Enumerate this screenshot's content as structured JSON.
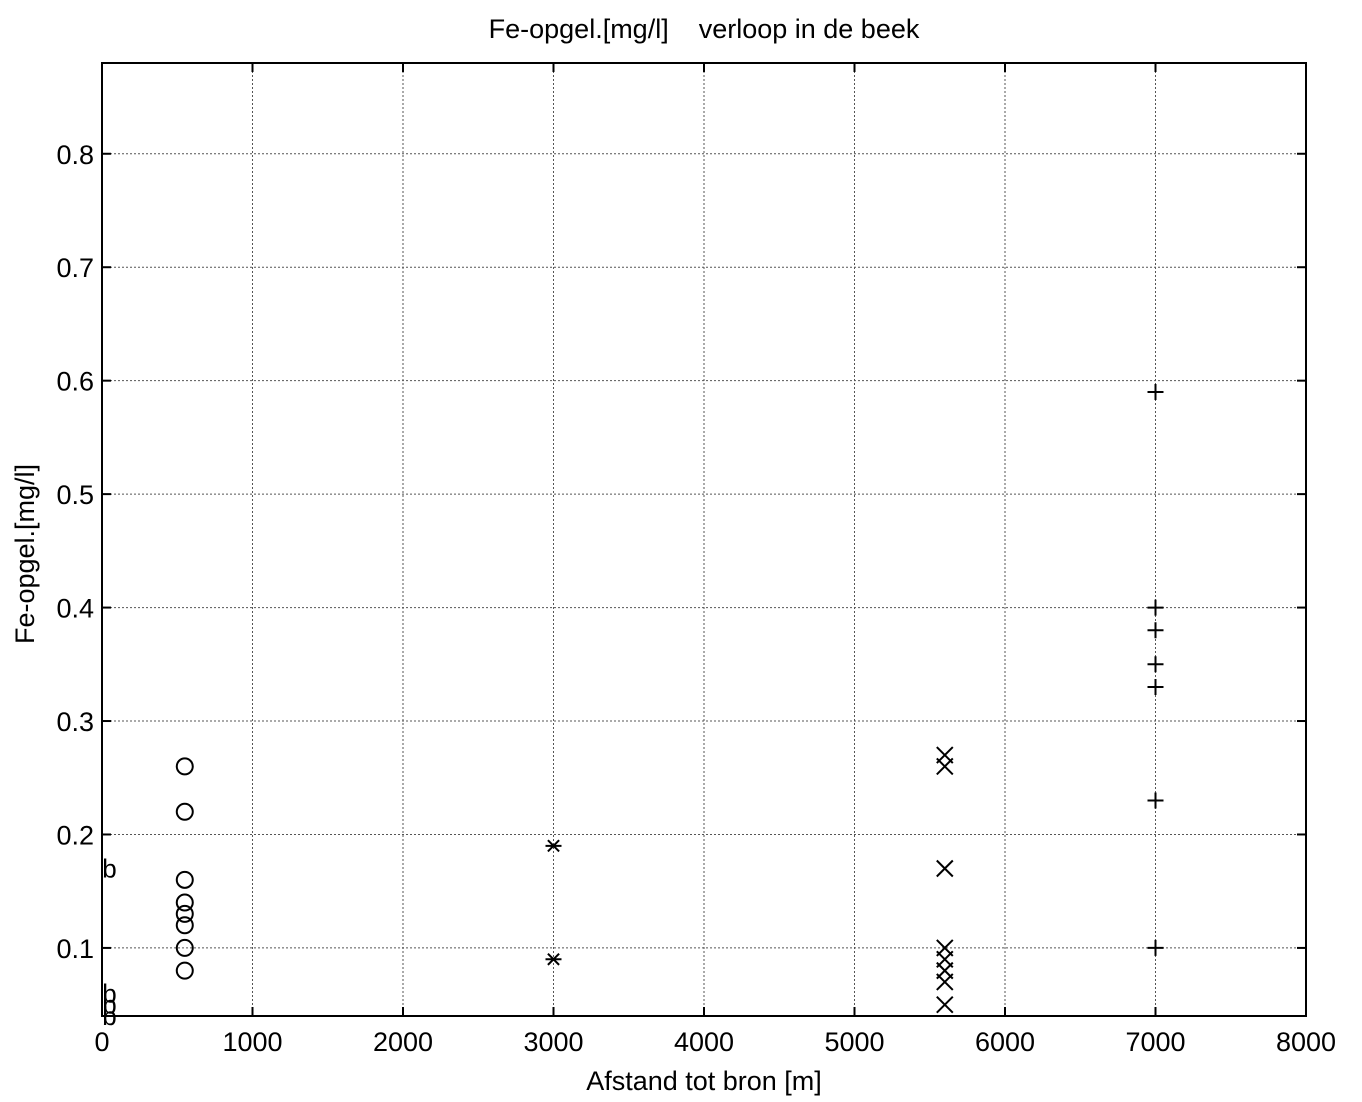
{
  "chart_data": {
    "type": "scatter",
    "title": "Fe-opgel.[mg/l]    verloop in de beek",
    "xlabel": "Afstand tot bron [m]",
    "ylabel": "Fe-opgel.[mg/l]",
    "xlim": [
      0,
      8000
    ],
    "ylim": [
      0.04,
      0.88
    ],
    "xticks": [
      0,
      1000,
      2000,
      3000,
      4000,
      5000,
      6000,
      7000,
      8000
    ],
    "xtick_labels": [
      "0",
      "1000",
      "2000",
      "3000",
      "4000",
      "5000",
      "6000",
      "7000",
      "8000"
    ],
    "yticks": [
      0.1,
      0.2,
      0.3,
      0.4,
      0.5,
      0.6,
      0.7,
      0.8
    ],
    "ytick_labels": [
      "0.1",
      "0.2",
      "0.3",
      "0.4",
      "0.5",
      "0.6",
      "0.7",
      "0.8"
    ],
    "grid": true,
    "series": [
      {
        "marker": "b",
        "points": [
          [
            50,
            0.17
          ],
          [
            50,
            0.06
          ],
          [
            50,
            0.05
          ],
          [
            50,
            0.04
          ]
        ]
      },
      {
        "marker": "circle",
        "points": [
          [
            550,
            0.26
          ],
          [
            550,
            0.22
          ],
          [
            550,
            0.16
          ],
          [
            550,
            0.14
          ],
          [
            550,
            0.13
          ],
          [
            550,
            0.12
          ],
          [
            550,
            0.1
          ],
          [
            550,
            0.08
          ]
        ]
      },
      {
        "marker": "asterisk",
        "points": [
          [
            3000,
            0.19
          ],
          [
            3000,
            0.09
          ]
        ]
      },
      {
        "marker": "cross",
        "points": [
          [
            5600,
            0.27
          ],
          [
            5600,
            0.26
          ],
          [
            5600,
            0.17
          ],
          [
            5600,
            0.1
          ],
          [
            5600,
            0.09
          ],
          [
            5600,
            0.08
          ],
          [
            5600,
            0.07
          ],
          [
            5600,
            0.05
          ]
        ]
      },
      {
        "marker": "plus",
        "points": [
          [
            7000,
            0.59
          ],
          [
            7000,
            0.4
          ],
          [
            7000,
            0.38
          ],
          [
            7000,
            0.35
          ],
          [
            7000,
            0.33
          ],
          [
            7000,
            0.23
          ],
          [
            7000,
            0.1
          ]
        ]
      }
    ]
  }
}
